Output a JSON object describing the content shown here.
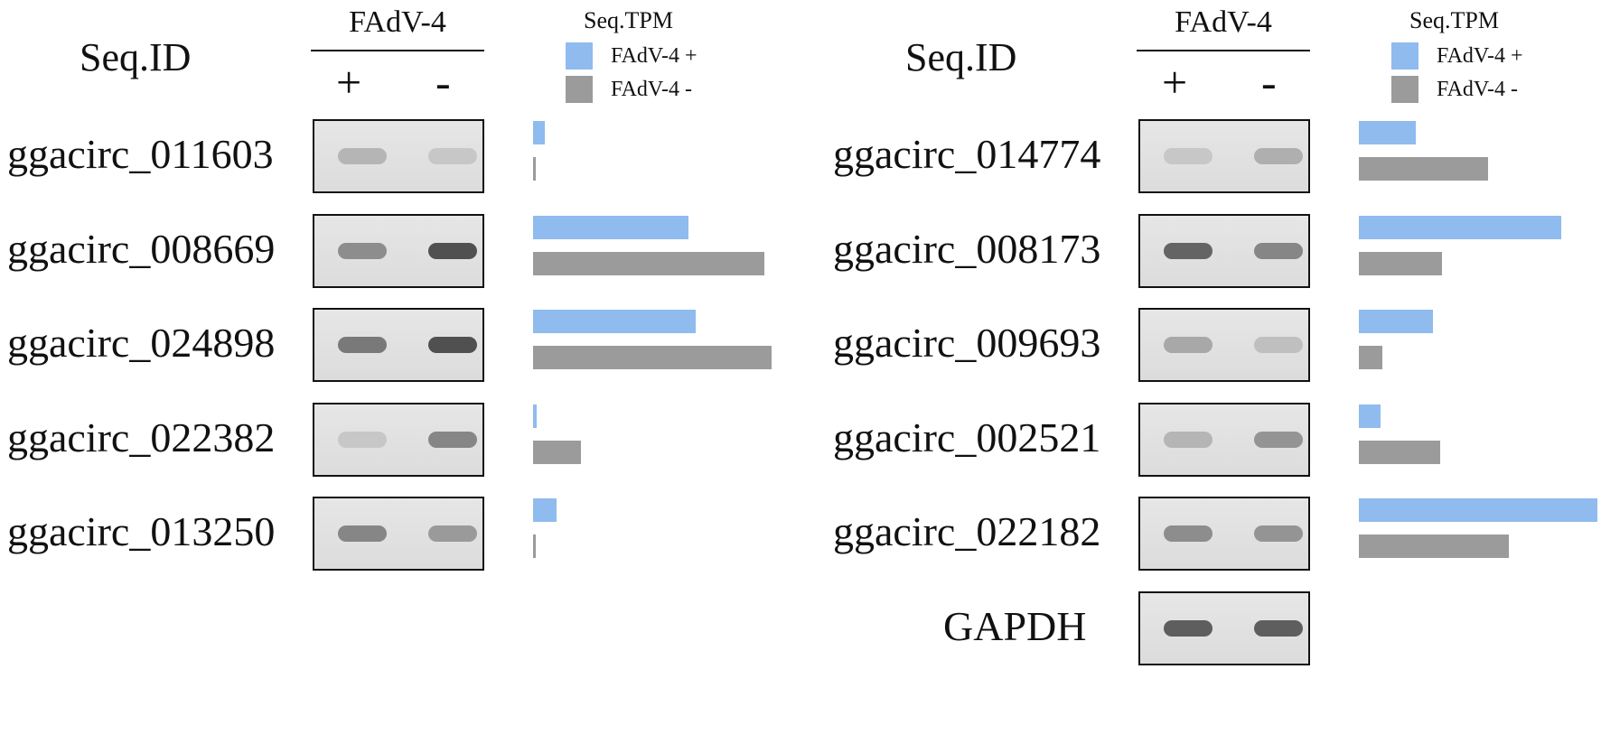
{
  "panels": [
    {
      "seq_id_label": "Seq.ID",
      "group_label": "FAdV-4",
      "plus_label": "+",
      "minus_label": "-",
      "legend": {
        "title": "Seq.TPM",
        "pos_label": "FAdV-4 +",
        "neg_label": "FAdV-4  -",
        "pos_color": "#8fbbee",
        "neg_color": "#9b9b9b"
      },
      "rows": [
        {
          "id": "ggacirc_011603",
          "tpm_pos": 0.05,
          "tpm_neg": 0.01,
          "band_pos": 0.25,
          "band_neg": 0.12
        },
        {
          "id": "ggacirc_008669",
          "tpm_pos": 0.65,
          "tpm_neg": 0.97,
          "band_pos": 0.55,
          "band_neg": 1.0
        },
        {
          "id": "ggacirc_024898",
          "tpm_pos": 0.68,
          "tpm_neg": 1.0,
          "band_pos": 0.7,
          "band_neg": 1.0
        },
        {
          "id": "ggacirc_022382",
          "tpm_pos": 0.015,
          "tpm_neg": 0.2,
          "band_pos": 0.12,
          "band_neg": 0.6
        },
        {
          "id": "ggacirc_013250",
          "tpm_pos": 0.1,
          "tpm_neg": 0.01,
          "band_pos": 0.6,
          "band_neg": 0.45
        }
      ]
    },
    {
      "seq_id_label": "Seq.ID",
      "group_label": "FAdV-4",
      "plus_label": "+",
      "minus_label": "-",
      "legend": {
        "title": "Seq.TPM",
        "pos_label": "FAdV-4 +",
        "neg_label": "FAdV-4  -",
        "pos_color": "#8fbbee",
        "neg_color": "#9b9b9b"
      },
      "rows": [
        {
          "id": "ggacirc_014774",
          "tpm_pos": 0.24,
          "tpm_neg": 0.54,
          "band_pos": 0.12,
          "band_neg": 0.3
        },
        {
          "id": "ggacirc_008173",
          "tpm_pos": 0.85,
          "tpm_neg": 0.35,
          "band_pos": 0.85,
          "band_neg": 0.6
        },
        {
          "id": "ggacirc_009693",
          "tpm_pos": 0.31,
          "tpm_neg": 0.1,
          "band_pos": 0.35,
          "band_neg": 0.18
        },
        {
          "id": "ggacirc_002521",
          "tpm_pos": 0.09,
          "tpm_neg": 0.34,
          "band_pos": 0.25,
          "band_neg": 0.5
        },
        {
          "id": "ggacirc_022182",
          "tpm_pos": 1.0,
          "tpm_neg": 0.63,
          "band_pos": 0.55,
          "band_neg": 0.5
        },
        {
          "id": "GAPDH",
          "band_pos": 0.9,
          "band_neg": 0.9
        }
      ]
    }
  ]
}
